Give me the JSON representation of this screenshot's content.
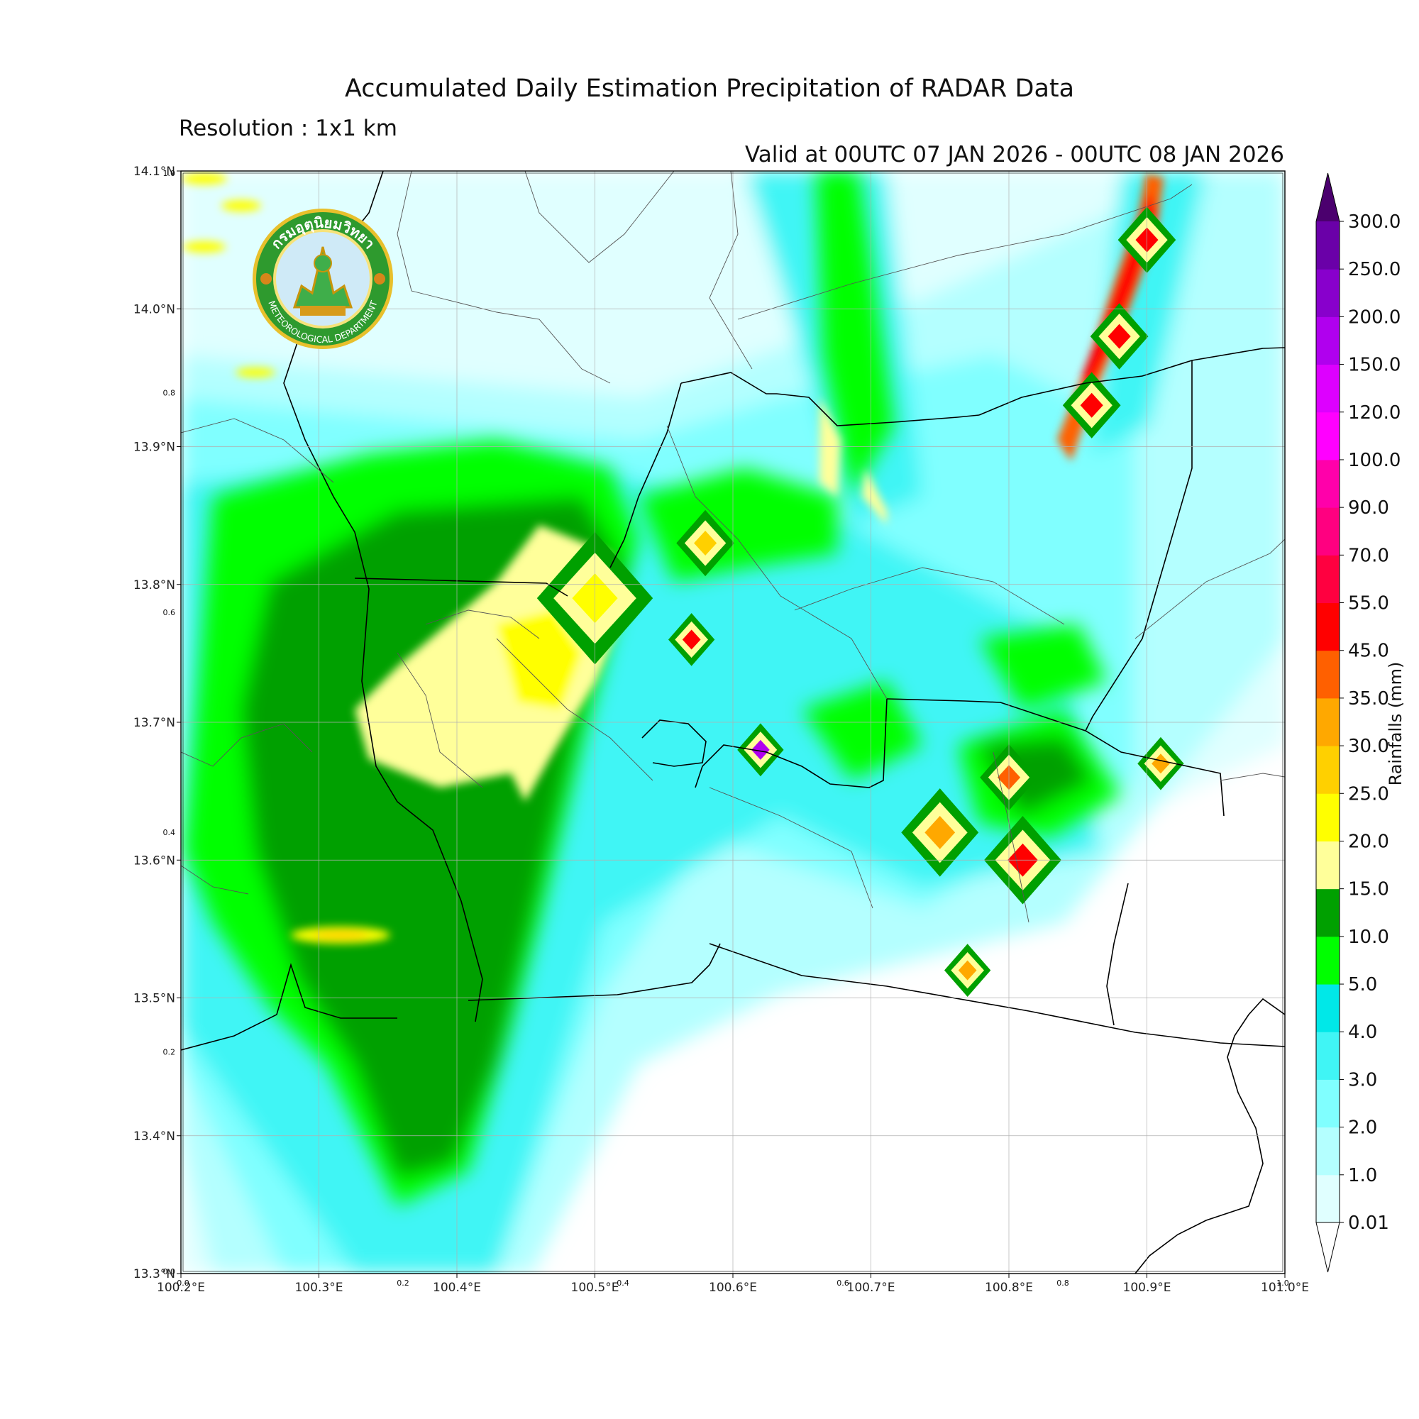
{
  "header": {
    "title": "Accumulated Daily Estimation Precipitation of RADAR Data",
    "subtitle": "Resolution : 1x1 km",
    "valid": "Valid at 00UTC 07 JAN 2026 - 00UTC 08 JAN 2026"
  },
  "map": {
    "lon_range": [
      100.2,
      101.0
    ],
    "lat_range": [
      13.3,
      14.1
    ],
    "x_ticks": [
      "100.2°E",
      "100.3°E",
      "100.4°E",
      "100.5°E",
      "100.6°E",
      "100.7°E",
      "100.8°E",
      "100.9°E",
      "101.0°E"
    ],
    "y_ticks": [
      "13.3°N",
      "13.4°N",
      "13.5°N",
      "13.6°N",
      "13.7°N",
      "13.8°N",
      "13.9°N",
      "14.0°N",
      "14.1°N"
    ],
    "inner_x_ticks": [
      "0.0",
      "0.2",
      "0.4",
      "0.6",
      "0.8",
      "1.0"
    ],
    "inner_y_ticks": [
      "0.0",
      "0.2",
      "0.4",
      "0.6",
      "0.8",
      "1.0"
    ],
    "grid": true
  },
  "logo": {
    "thai_text": "กรมอุตุนิยมวิทยา",
    "english_text": "METEOROLOGICAL DEPARTMENT",
    "icon": "tmd-seal-icon"
  },
  "colorbar": {
    "title": "Rainfalls (mm)",
    "levels": [
      "0.01",
      "1.0",
      "2.0",
      "3.0",
      "4.0",
      "5.0",
      "10.0",
      "15.0",
      "20.0",
      "25.0",
      "30.0",
      "35.0",
      "45.0",
      "55.0",
      "70.0",
      "90.0",
      "100.0",
      "120.0",
      "150.0",
      "200.0",
      "250.0",
      "300.0"
    ],
    "colors": [
      "#e0ffff",
      "#b4ffff",
      "#80ffff",
      "#40f5f5",
      "#00e8e8",
      "#00ff00",
      "#00a000",
      "#ffff9a",
      "#ffff00",
      "#ffd000",
      "#ffa800",
      "#ff6000",
      "#ff0000",
      "#ff0040",
      "#ff0080",
      "#ff00aa",
      "#ff00ff",
      "#dd00ff",
      "#b000ee",
      "#8800cc",
      "#6a00a8"
    ],
    "over_color": "#4b006e",
    "under_color": "#ffffff"
  },
  "rain_features": [
    {
      "lon": 100.24,
      "lat": 13.65,
      "r": 0.06,
      "mm": 12
    },
    {
      "lon": 100.38,
      "lat": 13.63,
      "r": 0.14,
      "mm": 7
    },
    {
      "lon": 100.45,
      "lat": 13.6,
      "r": 0.12,
      "mm": 7
    },
    {
      "lon": 100.43,
      "lat": 13.44,
      "r": 0.16,
      "mm": 7
    },
    {
      "lon": 100.5,
      "lat": 13.8,
      "r": 0.1,
      "mm": 7
    },
    {
      "lon": 100.45,
      "lat": 13.74,
      "r": 0.07,
      "mm": 12
    },
    {
      "lon": 100.48,
      "lat": 13.72,
      "r": 0.06,
      "mm": 12
    },
    {
      "lon": 100.5,
      "lat": 13.79,
      "r": 0.03,
      "mm": 22
    },
    {
      "lon": 100.58,
      "lat": 13.83,
      "r": 0.015,
      "mm": 25
    },
    {
      "lon": 100.57,
      "lat": 13.76,
      "r": 0.012,
      "mm": 45
    },
    {
      "lon": 100.62,
      "lat": 13.68,
      "r": 0.012,
      "mm": 150
    },
    {
      "lon": 100.75,
      "lat": 13.62,
      "r": 0.02,
      "mm": 30
    },
    {
      "lon": 100.8,
      "lat": 13.66,
      "r": 0.015,
      "mm": 40
    },
    {
      "lon": 100.81,
      "lat": 13.6,
      "r": 0.02,
      "mm": 45
    },
    {
      "lon": 100.91,
      "lat": 13.67,
      "r": 0.012,
      "mm": 30
    },
    {
      "lon": 100.77,
      "lat": 13.52,
      "r": 0.012,
      "mm": 30
    },
    {
      "lon": 100.32,
      "lat": 13.55,
      "r": 0.04,
      "mm": 20
    },
    {
      "lon": 100.88,
      "lat": 13.98,
      "r": 0.015,
      "mm": 45
    },
    {
      "lon": 100.9,
      "lat": 14.05,
      "r": 0.015,
      "mm": 45
    },
    {
      "lon": 100.86,
      "lat": 13.93,
      "r": 0.015,
      "mm": 45
    }
  ],
  "footer": {}
}
